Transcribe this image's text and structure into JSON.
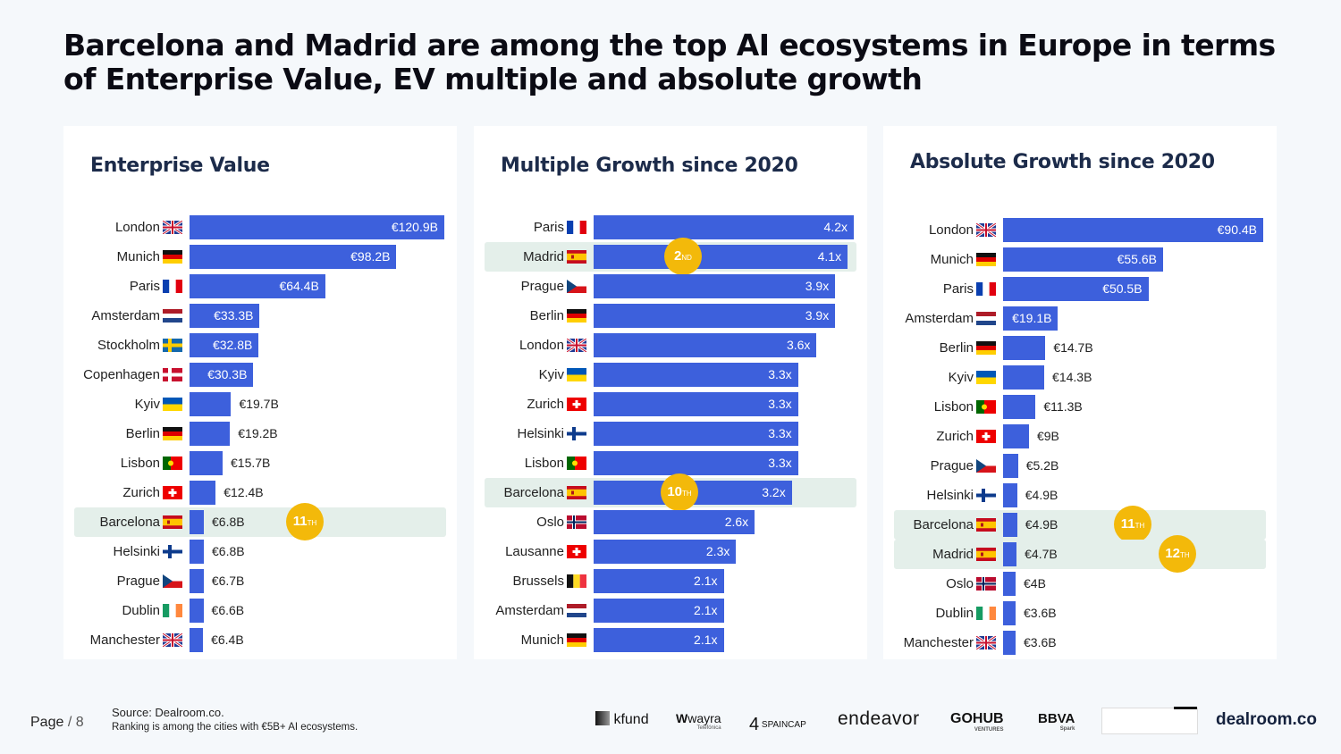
{
  "title": "Barcelona and Madrid are among the top AI ecosystems in Europe in terms of Enterprise Value, EV multiple and absolute growth",
  "colors": {
    "bar": "#3d60dc",
    "highlight": "#e4efea",
    "badge": "#f3b90a"
  },
  "chart_data": [
    {
      "type": "bar",
      "orientation": "horizontal",
      "title": "Enterprise Value",
      "unit": "€B",
      "max": 120.9,
      "rows": [
        {
          "city": "London",
          "flag": "gb",
          "value": 120.9,
          "label": "€120.9B"
        },
        {
          "city": "Munich",
          "flag": "de",
          "value": 98.2,
          "label": "€98.2B"
        },
        {
          "city": "Paris",
          "flag": "fr",
          "value": 64.4,
          "label": "€64.4B"
        },
        {
          "city": "Amsterdam",
          "flag": "nl",
          "value": 33.3,
          "label": "€33.3B"
        },
        {
          "city": "Stockholm",
          "flag": "se",
          "value": 32.8,
          "label": "€32.8B"
        },
        {
          "city": "Copenhagen",
          "flag": "dk",
          "value": 30.3,
          "label": "€30.3B"
        },
        {
          "city": "Kyiv",
          "flag": "ua",
          "value": 19.7,
          "label": "€19.7B"
        },
        {
          "city": "Berlin",
          "flag": "de",
          "value": 19.2,
          "label": "€19.2B"
        },
        {
          "city": "Lisbon",
          "flag": "pt",
          "value": 15.7,
          "label": "€15.7B"
        },
        {
          "city": "Zurich",
          "flag": "ch",
          "value": 12.4,
          "label": "€12.4B"
        },
        {
          "city": "Barcelona",
          "flag": "es",
          "value": 6.8,
          "label": "€6.8B",
          "highlight": true,
          "rank": "11",
          "rank_suffix": "TH"
        },
        {
          "city": "Helsinki",
          "flag": "fi",
          "value": 6.8,
          "label": "€6.8B"
        },
        {
          "city": "Prague",
          "flag": "cz",
          "value": 6.7,
          "label": "€6.7B"
        },
        {
          "city": "Dublin",
          "flag": "ie",
          "value": 6.6,
          "label": "€6.6B"
        },
        {
          "city": "Manchester",
          "flag": "gb",
          "value": 6.4,
          "label": "€6.4B"
        }
      ]
    },
    {
      "type": "bar",
      "orientation": "horizontal",
      "title": "Multiple Growth since 2020",
      "unit": "x",
      "max": 4.2,
      "rows": [
        {
          "city": "Paris",
          "flag": "fr",
          "value": 4.2,
          "label": "4.2x"
        },
        {
          "city": "Madrid",
          "flag": "es",
          "value": 4.1,
          "label": "4.1x",
          "highlight": true,
          "rank": "2",
          "rank_suffix": "ND"
        },
        {
          "city": "Prague",
          "flag": "cz",
          "value": 3.9,
          "label": "3.9x"
        },
        {
          "city": "Berlin",
          "flag": "de",
          "value": 3.9,
          "label": "3.9x"
        },
        {
          "city": "London",
          "flag": "gb",
          "value": 3.6,
          "label": "3.6x"
        },
        {
          "city": "Kyiv",
          "flag": "ua",
          "value": 3.3,
          "label": "3.3x"
        },
        {
          "city": "Zurich",
          "flag": "ch",
          "value": 3.3,
          "label": "3.3x"
        },
        {
          "city": "Helsinki",
          "flag": "fi",
          "value": 3.3,
          "label": "3.3x"
        },
        {
          "city": "Lisbon",
          "flag": "pt",
          "value": 3.3,
          "label": "3.3x"
        },
        {
          "city": "Barcelona",
          "flag": "es",
          "value": 3.2,
          "label": "3.2x",
          "highlight": true,
          "rank": "10",
          "rank_suffix": "TH"
        },
        {
          "city": "Oslo",
          "flag": "no",
          "value": 2.6,
          "label": "2.6x"
        },
        {
          "city": "Lausanne",
          "flag": "ch",
          "value": 2.3,
          "label": "2.3x"
        },
        {
          "city": "Brussels",
          "flag": "be",
          "value": 2.1,
          "label": "2.1x"
        },
        {
          "city": "Amsterdam",
          "flag": "nl",
          "value": 2.1,
          "label": "2.1x"
        },
        {
          "city": "Munich",
          "flag": "de",
          "value": 2.1,
          "label": "2.1x"
        }
      ]
    },
    {
      "type": "bar",
      "orientation": "horizontal",
      "title": "Absolute Growth since 2020",
      "unit": "€B",
      "max": 90.4,
      "rows": [
        {
          "city": "London",
          "flag": "gb",
          "value": 90.4,
          "label": "€90.4B"
        },
        {
          "city": "Munich",
          "flag": "de",
          "value": 55.6,
          "label": "€55.6B"
        },
        {
          "city": "Paris",
          "flag": "fr",
          "value": 50.5,
          "label": "€50.5B"
        },
        {
          "city": "Amsterdam",
          "flag": "nl",
          "value": 19.1,
          "label": "€19.1B"
        },
        {
          "city": "Berlin",
          "flag": "de",
          "value": 14.7,
          "label": "€14.7B"
        },
        {
          "city": "Kyiv",
          "flag": "ua",
          "value": 14.3,
          "label": "€14.3B"
        },
        {
          "city": "Lisbon",
          "flag": "pt",
          "value": 11.3,
          "label": "€11.3B"
        },
        {
          "city": "Zurich",
          "flag": "ch",
          "value": 9,
          "label": "€9B"
        },
        {
          "city": "Prague",
          "flag": "cz",
          "value": 5.2,
          "label": "€5.2B"
        },
        {
          "city": "Helsinki",
          "flag": "fi",
          "value": 4.9,
          "label": "€4.9B"
        },
        {
          "city": "Barcelona",
          "flag": "es",
          "value": 4.9,
          "label": "€4.9B",
          "highlight": true,
          "rank": "11",
          "rank_suffix": "TH"
        },
        {
          "city": "Madrid",
          "flag": "es",
          "value": 4.7,
          "label": "€4.7B",
          "highlight": true,
          "rank": "12",
          "rank_suffix": "TH"
        },
        {
          "city": "Oslo",
          "flag": "no",
          "value": 4,
          "label": "€4B"
        },
        {
          "city": "Dublin",
          "flag": "ie",
          "value": 3.6,
          "label": "€3.6B"
        },
        {
          "city": "Manchester",
          "flag": "gb",
          "value": 3.6,
          "label": "€3.6B"
        }
      ]
    }
  ],
  "footer": {
    "page_label": "Page",
    "page_number": "/ 8",
    "source": "Source: Dealroom.co.",
    "note": "Ranking is among the cities  with €5B+ AI ecosystems.",
    "logos": [
      "kfund",
      "wayra",
      "SPAINCAP",
      "endeavor",
      "GOHUB",
      "BBVA",
      "dealroom.co"
    ],
    "logo_subs": {
      "wayra": "Telefónica",
      "GOHUB": "VENTURES",
      "BBVA": "Spark"
    }
  }
}
